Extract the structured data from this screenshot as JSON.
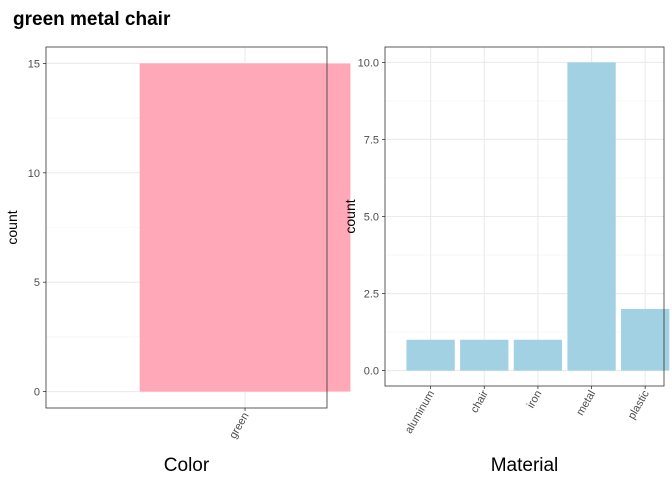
{
  "title": "green metal chair",
  "chart_data": [
    {
      "type": "bar",
      "xlabel": "Color",
      "ylabel": "count",
      "categories": [
        "green"
      ],
      "values": [
        15
      ],
      "ylim": [
        -0.75,
        15.75
      ],
      "yticks": [
        0,
        5,
        10,
        15
      ],
      "ytick_labels": [
        "0",
        "5",
        "10",
        "15"
      ],
      "bar_color": "#ffa8b7",
      "grid": true
    },
    {
      "type": "bar",
      "xlabel": "Material",
      "ylabel": "count",
      "categories": [
        "aluminum",
        "chair",
        "iron",
        "metal",
        "plastic"
      ],
      "values": [
        1,
        1,
        1,
        10,
        2
      ],
      "ylim": [
        -0.5,
        10.5
      ],
      "yticks": [
        0,
        2.5,
        5,
        7.5,
        10
      ],
      "ytick_labels": [
        "0.0",
        "2.5",
        "5.0",
        "7.5",
        "10.0"
      ],
      "bar_color": "#a1d1e3",
      "grid": true
    }
  ]
}
